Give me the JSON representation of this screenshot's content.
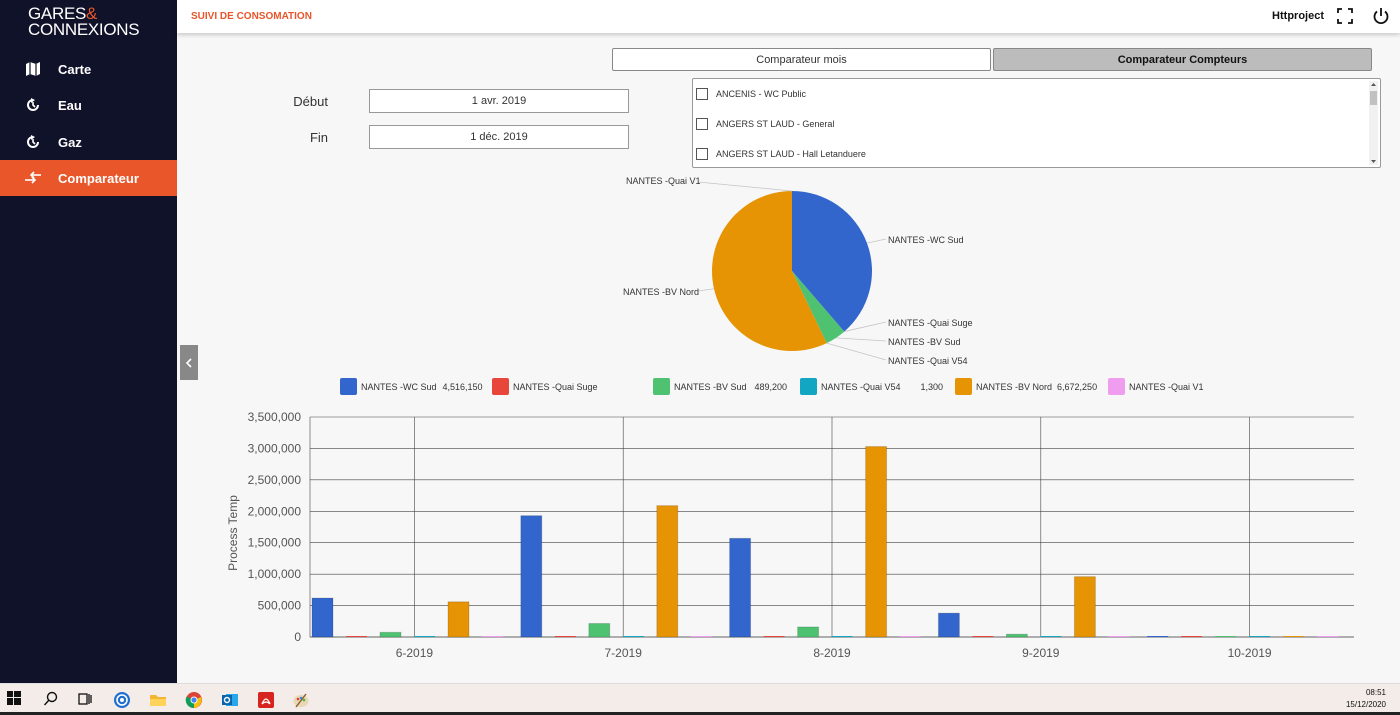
{
  "logo": {
    "line1": "GARES",
    "amp": "&",
    "line2": "CONNEXIONS"
  },
  "sidebar": {
    "items": [
      {
        "label": "Carte",
        "icon": "map-icon"
      },
      {
        "label": "Eau",
        "icon": "refresh-icon"
      },
      {
        "label": "Gaz",
        "icon": "refresh-icon"
      },
      {
        "label": "Comparateur",
        "icon": "compare-arrows-icon",
        "active": true
      }
    ]
  },
  "header": {
    "title": "SUIVI DE CONSOMATION",
    "user": "Httproject"
  },
  "tabs": [
    {
      "label": "Comparateur mois",
      "active": false
    },
    {
      "label": "Comparateur Compteurs",
      "active": true
    }
  ],
  "filters": {
    "start_label": "Début",
    "start_value": "1 avr. 2019",
    "end_label": "Fin",
    "end_value": "1 déc. 2019"
  },
  "meters": [
    {
      "label": "ANCENIS - WC Public",
      "checked": false
    },
    {
      "label": "ANGERS ST LAUD - General",
      "checked": false
    },
    {
      "label": "ANGERS ST LAUD - Hall Letanduere",
      "checked": false
    }
  ],
  "legend": [
    {
      "name": "NANTES -WC Sud",
      "value": "4,516,150",
      "color": "#3366cc"
    },
    {
      "name": "NANTES -Quai Suge",
      "value": "",
      "color": "#e8463a"
    },
    {
      "name": "NANTES -BV Sud",
      "value": "489,200",
      "color": "#4ec271"
    },
    {
      "name": "NANTES -Quai V54",
      "value": "1,300",
      "color": "#12a6c2"
    },
    {
      "name": "NANTES -BV Nord",
      "value": "6,672,250",
      "color": "#e69304"
    },
    {
      "name": "NANTES -Quai V1",
      "value": "",
      "color": "#f09df0"
    }
  ],
  "chart_data": [
    {
      "type": "pie",
      "slices": [
        {
          "label": "NANTES -WC Sud",
          "value": 4516150,
          "color": "#3366cc"
        },
        {
          "label": "NANTES -Quai Suge",
          "value": 0,
          "color": "#e8463a"
        },
        {
          "label": "NANTES -BV Sud",
          "value": 489200,
          "color": "#4ec271"
        },
        {
          "label": "NANTES -Quai V54",
          "value": 1300,
          "color": "#12a6c2"
        },
        {
          "label": "NANTES -BV Nord",
          "value": 6672250,
          "color": "#e69304"
        },
        {
          "label": "NANTES -Quai V1",
          "value": 0,
          "color": "#f09df0"
        }
      ]
    },
    {
      "type": "bar",
      "categories": [
        "6-2019",
        "7-2019",
        "8-2019",
        "9-2019",
        "10-2019"
      ],
      "ylabel": "Process Temp",
      "ylim": [
        0,
        3500000
      ],
      "yticks": [
        "0",
        "500,000",
        "1,000,000",
        "1,500,000",
        "2,000,000",
        "2,500,000",
        "3,000,000",
        "3,500,000"
      ],
      "series": [
        {
          "name": "NANTES -WC Sud",
          "color": "#3366cc",
          "values": [
            620000,
            1930000,
            1570000,
            380000,
            0
          ]
        },
        {
          "name": "NANTES -Quai Suge",
          "color": "#e8463a",
          "values": [
            0,
            0,
            0,
            0,
            0
          ]
        },
        {
          "name": "NANTES -BV Sud",
          "color": "#4ec271",
          "values": [
            75000,
            215000,
            160000,
            45000,
            0
          ]
        },
        {
          "name": "NANTES -Quai V54",
          "color": "#12a6c2",
          "values": [
            0,
            0,
            0,
            0,
            0
          ]
        },
        {
          "name": "NANTES -BV Nord",
          "color": "#e69304",
          "values": [
            560000,
            2090000,
            3030000,
            960000,
            0
          ]
        },
        {
          "name": "NANTES -Quai V1",
          "color": "#f09df0",
          "values": [
            0,
            0,
            0,
            0,
            0
          ]
        }
      ]
    }
  ],
  "taskbar": {
    "time": "08:51",
    "date": "15/12/2020"
  }
}
